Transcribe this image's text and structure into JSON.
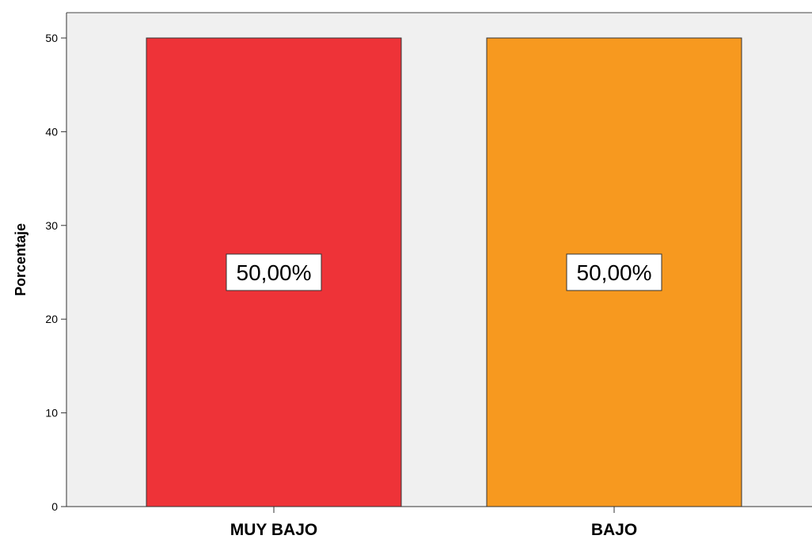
{
  "chart_data": {
    "type": "bar",
    "categories": [
      "MUY BAJO",
      "BAJO"
    ],
    "values": [
      50,
      50
    ],
    "data_labels": [
      "50,00%",
      "50,00%"
    ],
    "colors": [
      "#ee3338",
      "#f7991f"
    ],
    "title": "",
    "xlabel": "",
    "ylabel": "Porcentaje",
    "ylim": [
      0,
      50
    ],
    "yticks": [
      0,
      10,
      20,
      30,
      40,
      50
    ],
    "ytick_labels": [
      "0",
      "10",
      "20",
      "30",
      "40",
      "50"
    ],
    "grid": false,
    "legend": "none",
    "plot_background": "#f0f0f0"
  }
}
